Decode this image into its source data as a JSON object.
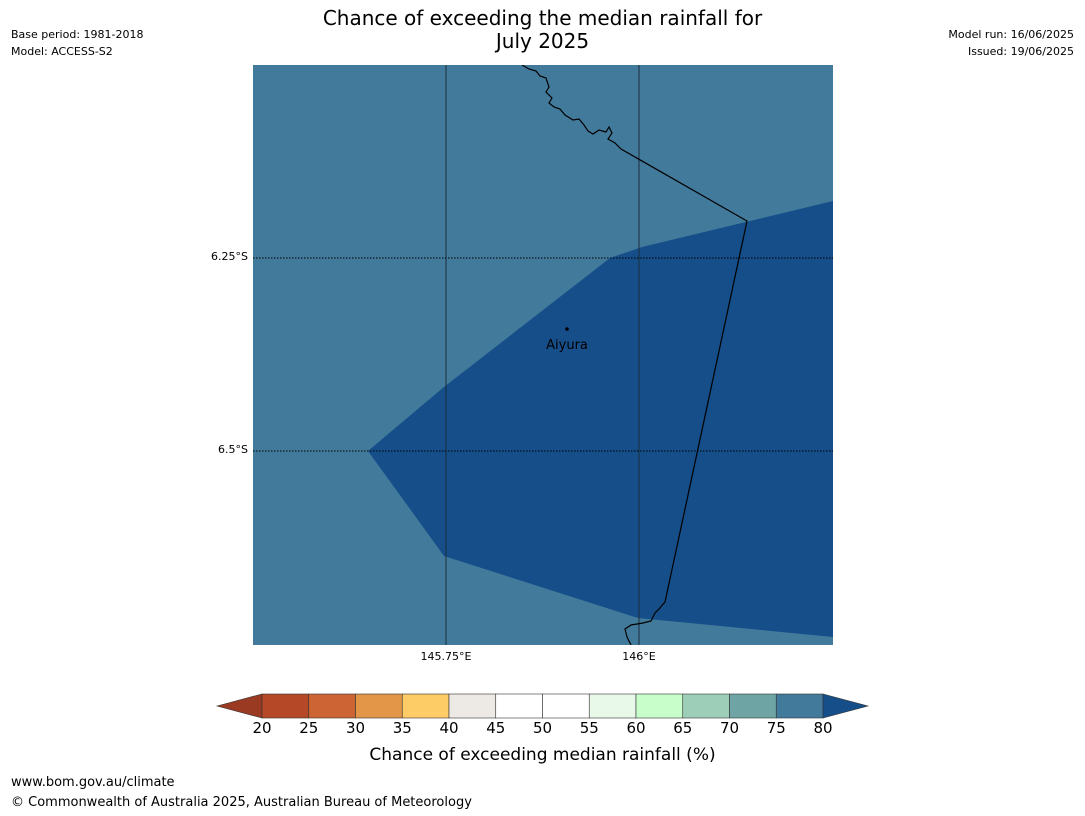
{
  "title_line1": "Chance of exceeding the median rainfall for",
  "title_line2": "July 2025",
  "meta_left": {
    "base_period": "Base period: 1981-2018",
    "model": "Model: ACCESS-S2"
  },
  "meta_right": {
    "model_run": "Model run: 16/06/2025",
    "issued": "Issued: 19/06/2025"
  },
  "map": {
    "gridlines": {
      "lat_labels": [
        "6.25°S",
        "6.5°S"
      ],
      "lon_labels": [
        "145.75°E",
        "146°E"
      ]
    },
    "place": {
      "name": "Aiyura"
    },
    "colors": {
      "zone_70_80": "#427a9b",
      "zone_over_80": "#154e88",
      "coastline": "#000000"
    }
  },
  "colorbar": {
    "ticks": [
      "20",
      "25",
      "30",
      "35",
      "40",
      "45",
      "50",
      "55",
      "60",
      "65",
      "70",
      "75",
      "80"
    ],
    "colors": [
      "#9b3a22",
      "#b44827",
      "#cd6433",
      "#e39647",
      "#fdcc66",
      "#ede9e4",
      "#ffffff",
      "#ffffff",
      "#e8f8e9",
      "#c8fec9",
      "#9dcfb8",
      "#6fa4a5",
      "#427a9b",
      "#154e88"
    ],
    "label": "Chance of exceeding median rainfall (%)"
  },
  "footer": {
    "url": "www.bom.gov.au/climate",
    "copyright": "© Commonwealth of Australia 2025, Australian Bureau of Meteorology"
  }
}
